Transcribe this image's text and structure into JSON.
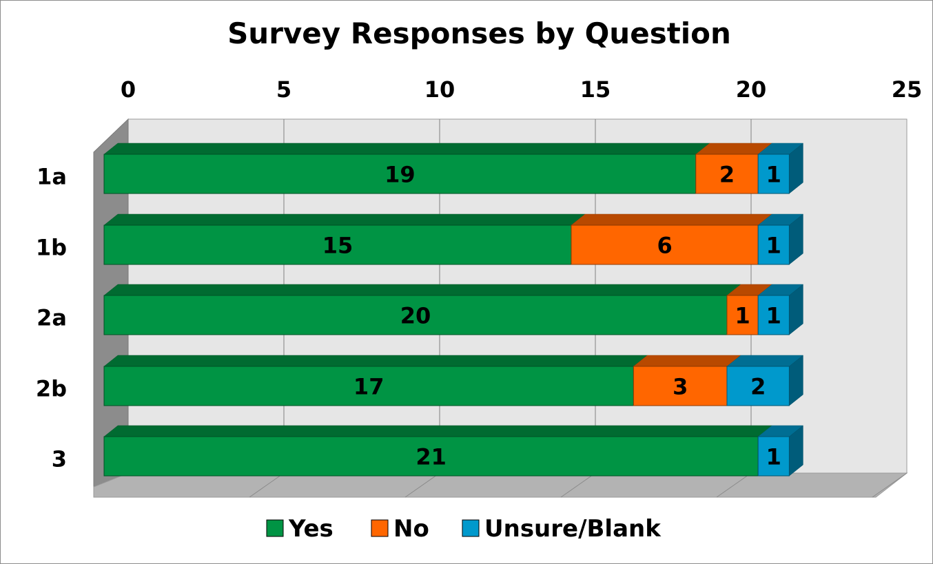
{
  "chart_data": {
    "type": "bar",
    "orientation": "horizontal",
    "stacked": true,
    "three_d": true,
    "title": "Survey Responses by Question",
    "categories": [
      "1a",
      "1b",
      "2a",
      "2b",
      "3"
    ],
    "series": [
      {
        "name": "Yes",
        "values": [
          19,
          15,
          20,
          17,
          21
        ],
        "color": "#009444"
      },
      {
        "name": "No",
        "values": [
          2,
          6,
          1,
          3,
          0
        ],
        "color": "#ff6600"
      },
      {
        "name": "Unsure/Blank",
        "values": [
          1,
          1,
          1,
          2,
          1
        ],
        "color": "#0099cc"
      }
    ],
    "x_ticks": [
      "0",
      "5",
      "10",
      "15",
      "20",
      "25"
    ],
    "xlim": [
      0,
      25
    ],
    "x_axis_position": "top",
    "grid": true,
    "legend_position": "bottom",
    "data_labels": true
  }
}
